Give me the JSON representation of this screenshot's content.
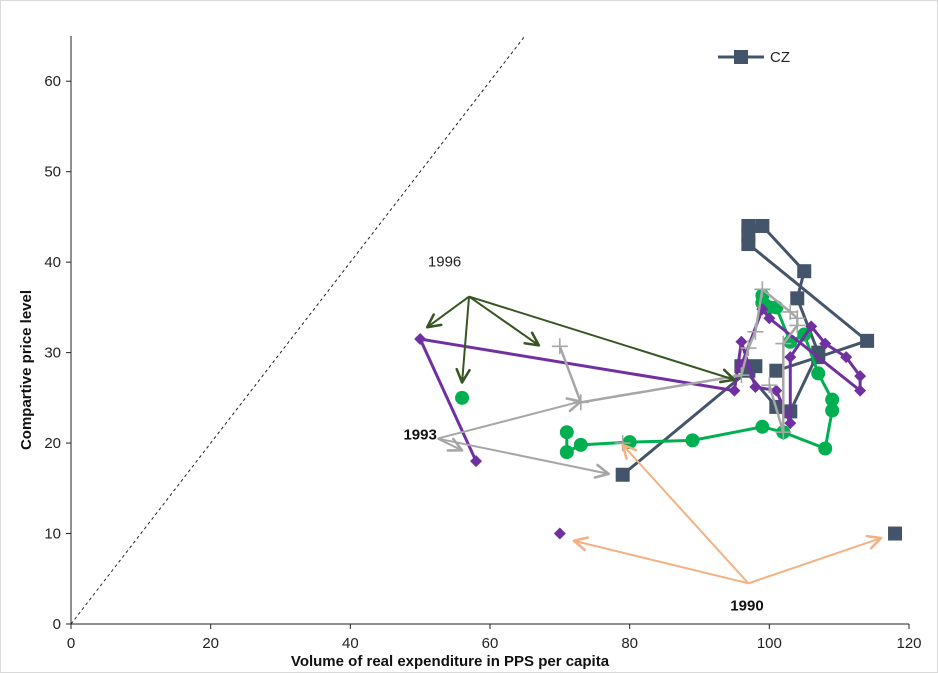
{
  "chart_data": {
    "type": "scatter",
    "xlabel": "Volume of real expenditure in PPS per capita",
    "ylabel": "Compartive price level",
    "xlim": [
      0,
      120
    ],
    "ylim": [
      0,
      65
    ],
    "xticks": [
      "0",
      "20",
      "40",
      "60",
      "80",
      "100",
      "120"
    ],
    "yticks": [
      "0",
      "10",
      "20",
      "30",
      "40",
      "50",
      "60"
    ],
    "grid": false,
    "legend": {
      "placement": "top-right",
      "entries": [
        "CZ"
      ]
    },
    "reference_line": {
      "style": "dashed",
      "from": [
        0,
        0
      ],
      "to": [
        65,
        65
      ]
    },
    "series": [
      {
        "name": "CZ",
        "color": "#44546a",
        "marker": "square",
        "start_point": [
          118,
          10
        ],
        "points": [
          [
            79,
            16.5
          ],
          [
            97,
            28
          ],
          [
            98,
            28.5
          ],
          [
            96,
            28.5
          ],
          [
            101,
            24
          ],
          [
            103,
            23.5
          ],
          [
            107,
            30
          ],
          [
            104,
            36
          ],
          [
            105,
            39
          ],
          [
            99,
            44
          ],
          [
            97,
            44
          ],
          [
            97,
            43
          ],
          [
            97,
            42
          ],
          [
            114,
            31.3
          ],
          [
            107,
            29.5
          ],
          [
            101,
            28
          ]
        ]
      },
      {
        "color": "#00b050",
        "marker": "circle",
        "start_point": [
          56,
          25
        ],
        "points": [
          [
            71,
            21.2
          ],
          [
            71,
            19
          ],
          [
            73,
            19.8
          ],
          [
            80,
            20.1
          ],
          [
            89,
            20.3
          ],
          [
            99,
            21.8
          ],
          [
            102,
            21.2
          ],
          [
            108,
            19.4
          ],
          [
            109,
            23.6
          ],
          [
            109,
            24.8
          ],
          [
            107,
            27.7
          ],
          [
            105,
            32
          ],
          [
            103,
            31.2
          ],
          [
            101,
            35
          ],
          [
            99,
            36.3
          ],
          [
            99,
            35.5
          ],
          [
            100,
            35
          ]
        ]
      },
      {
        "color": "#7030a0",
        "marker": "diamond",
        "start_point": [
          70,
          10
        ],
        "points": [
          [
            58,
            18
          ],
          [
            50,
            31.5
          ],
          [
            95,
            25.8
          ],
          [
            96,
            31.2
          ],
          [
            98,
            26.2
          ],
          [
            101,
            25.8
          ],
          [
            103,
            22.2
          ],
          [
            103,
            29.5
          ],
          [
            106,
            32.9
          ],
          [
            108,
            31
          ],
          [
            111,
            29.5
          ],
          [
            113,
            27.4
          ],
          [
            113,
            25.8
          ],
          [
            100,
            33.8
          ],
          [
            99,
            34.8
          ],
          [
            96,
            28.6
          ]
        ]
      },
      {
        "color": "#a6a6a6",
        "marker": "plus",
        "start_point": [
          79,
          20
        ],
        "points": [
          [
            70,
            30.7
          ],
          [
            73,
            24.5
          ],
          [
            96,
            27.5
          ],
          [
            97,
            30.5
          ],
          [
            98,
            32.3
          ],
          [
            99,
            37
          ],
          [
            103,
            34.5
          ],
          [
            104,
            33.8
          ],
          [
            104,
            33
          ],
          [
            102,
            31
          ],
          [
            102,
            21.2
          ],
          [
            100,
            26.4
          ]
        ]
      }
    ],
    "annotations": [
      {
        "label": "1996",
        "style": "plain",
        "color": "#375623",
        "label_pos": [
          53.5,
          39.5
        ],
        "origin": [
          57,
          36.2
        ],
        "targets": [
          [
            51,
            32.8
          ],
          [
            56,
            26.7
          ],
          [
            67,
            30.8
          ],
          [
            95,
            27
          ]
        ]
      },
      {
        "label": "1993",
        "style": "bold",
        "color": "#a6a6a6",
        "label_pos": [
          50,
          20.4
        ],
        "origin": [
          52.5,
          20.5
        ],
        "targets": [
          [
            56,
            19.2
          ],
          [
            73,
            24.6
          ],
          [
            77,
            16.6
          ]
        ]
      },
      {
        "label": "1990",
        "style": "bold",
        "color": "#f4b183",
        "label_pos": [
          96.8,
          1.5
        ],
        "origin": [
          97,
          4.5
        ],
        "targets": [
          [
            72,
            9.2
          ],
          [
            116,
            9.5
          ],
          [
            79,
            19.8
          ]
        ]
      }
    ]
  }
}
